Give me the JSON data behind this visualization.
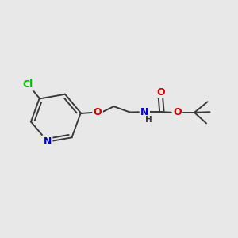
{
  "background_color": "#E8E8E8",
  "bond_color": "#3A3A3A",
  "bond_width": 1.4,
  "atom_colors": {
    "C": "#3A3A3A",
    "N": "#0000CC",
    "O": "#CC0000",
    "Cl": "#00BB00",
    "H": "#3A3A3A"
  },
  "figsize": [
    3.0,
    3.0
  ],
  "dpi": 100,
  "xlim": [
    0,
    10
  ],
  "ylim": [
    0,
    10
  ]
}
